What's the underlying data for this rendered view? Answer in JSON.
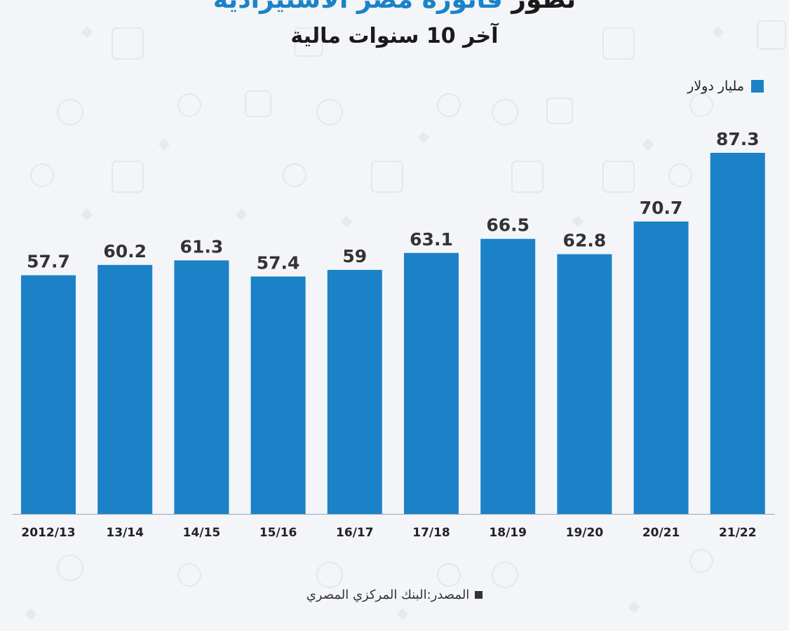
{
  "header": {
    "title_prefix": "تطور",
    "title_accent": "فاتورة مصر الاستيرادية",
    "subtitle": "آخر 10 سنوات مالية"
  },
  "colors": {
    "bar": "#1b82c8",
    "label": "#333333",
    "background": "#f3f5f8",
    "baseline": "#9aa3ad"
  },
  "chart_data": {
    "type": "bar",
    "categories": [
      "2012/13",
      "13/14",
      "14/15",
      "15/16",
      "16/17",
      "17/18",
      "18/19",
      "19/20",
      "20/21",
      "21/22"
    ],
    "series": [
      {
        "name": "مليار دولار",
        "values": [
          57.7,
          60.2,
          61.3,
          57.4,
          59,
          63.1,
          66.5,
          62.8,
          70.7,
          87.3
        ]
      }
    ],
    "title": "تطور فاتورة مصر الاستيرادية",
    "subtitle": "آخر 10 سنوات مالية",
    "xlabel": "",
    "ylabel": "",
    "ylim": [
      0,
      87.3
    ],
    "grid": false,
    "legend": "top-right",
    "data_labels": true
  },
  "legend": {
    "label": "مليار دولار"
  },
  "footer": {
    "source": "المصدر:البنك المركزي المصري"
  }
}
